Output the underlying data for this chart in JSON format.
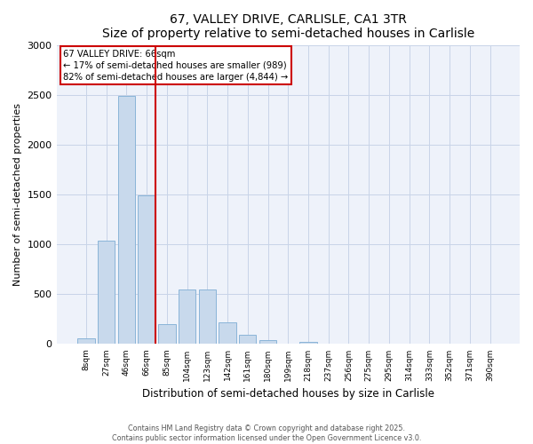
{
  "title": "67, VALLEY DRIVE, CARLISLE, CA1 3TR",
  "subtitle": "Size of property relative to semi-detached houses in Carlisle",
  "xlabel": "Distribution of semi-detached houses by size in Carlisle",
  "ylabel": "Number of semi-detached properties",
  "bar_labels": [
    "8sqm",
    "27sqm",
    "46sqm",
    "66sqm",
    "85sqm",
    "104sqm",
    "123sqm",
    "142sqm",
    "161sqm",
    "180sqm",
    "199sqm",
    "218sqm",
    "237sqm",
    "256sqm",
    "275sqm",
    "295sqm",
    "314sqm",
    "333sqm",
    "352sqm",
    "371sqm",
    "390sqm"
  ],
  "bar_values": [
    55,
    1040,
    2490,
    1490,
    200,
    545,
    545,
    215,
    90,
    40,
    5,
    20,
    5,
    0,
    0,
    0,
    0,
    0,
    0,
    0,
    0
  ],
  "bar_color": "#c8d9ec",
  "bar_edge_color": "#8ab4d8",
  "property_bin_idx": 3,
  "annotation_title": "67 VALLEY DRIVE: 66sqm",
  "annotation_line1": "← 17% of semi-detached houses are smaller (989)",
  "annotation_line2": "82% of semi-detached houses are larger (4,844) →",
  "annotation_color": "#cc0000",
  "ylim": [
    0,
    3000
  ],
  "yticks": [
    0,
    500,
    1000,
    1500,
    2000,
    2500,
    3000
  ],
  "grid_color": "#c8d4e8",
  "background_color": "#eef2fa",
  "footer_line1": "Contains HM Land Registry data © Crown copyright and database right 2025.",
  "footer_line2": "Contains public sector information licensed under the Open Government Licence v3.0."
}
